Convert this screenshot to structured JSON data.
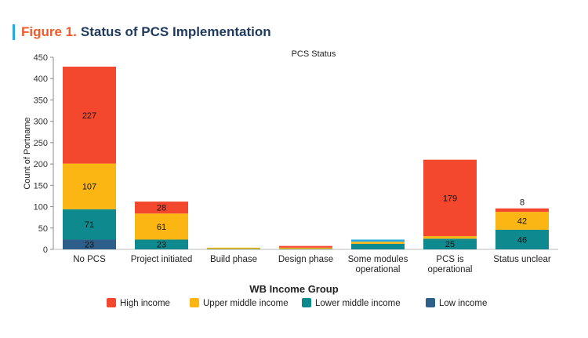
{
  "figure": {
    "number": "Figure 1.",
    "title": "Status of PCS Implementation"
  },
  "chart_data": {
    "type": "bar",
    "stacked": true,
    "title": "PCS Status",
    "xlabel": "",
    "ylabel": "Count of Portname",
    "ylim": [
      0,
      450
    ],
    "yticks": [
      0,
      50,
      100,
      150,
      200,
      250,
      300,
      350,
      400,
      450
    ],
    "grid": false,
    "categories": [
      "No PCS",
      "Project initiated",
      "Build phase",
      "Design phase",
      "Some modules operational",
      "PCS is operational",
      "Status unclear"
    ],
    "category_lines": [
      [
        "No PCS"
      ],
      [
        "Project initiated"
      ],
      [
        "Build phase"
      ],
      [
        "Design phase"
      ],
      [
        "Some modules",
        "operational"
      ],
      [
        "PCS is",
        "operational"
      ],
      [
        "Status unclear"
      ]
    ],
    "series": [
      {
        "name": "Low income",
        "color": "#2e5f8a",
        "values": [
          23,
          0,
          0,
          0,
          0,
          0,
          0
        ],
        "labels": [
          "23",
          "",
          "",
          "",
          "",
          "",
          ""
        ]
      },
      {
        "name": "Lower middle income",
        "color": "#0e8a8e",
        "values": [
          71,
          23,
          1,
          1,
          13,
          25,
          46
        ],
        "labels": [
          "71",
          "23",
          "",
          "",
          "",
          "25",
          "46"
        ]
      },
      {
        "name": "Upper middle income",
        "color": "#fbb613",
        "values": [
          107,
          61,
          3,
          3,
          5,
          6,
          42
        ],
        "labels": [
          "107",
          "61",
          "",
          "",
          "",
          "",
          "42"
        ]
      },
      {
        "name": "High income",
        "color": "#f4482e",
        "values": [
          227,
          28,
          0,
          4,
          0,
          179,
          8
        ],
        "labels": [
          "227",
          "28",
          "",
          "",
          "",
          "179",
          "8"
        ]
      }
    ],
    "extra_segments": [
      {
        "category_index": 4,
        "color": "#2aa8e0",
        "value": 5
      }
    ],
    "legend": {
      "title": "WB Income Group",
      "placement": "bottom",
      "order": [
        "High income",
        "Upper middle income",
        "Lower middle income",
        "Low income"
      ]
    }
  }
}
